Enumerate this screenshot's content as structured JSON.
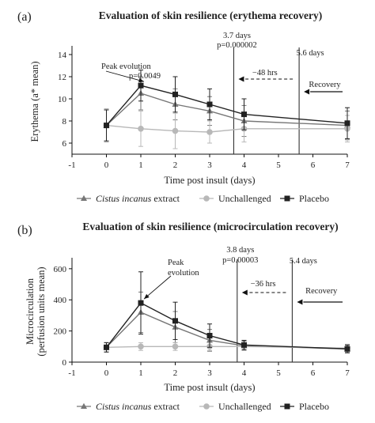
{
  "chart_data": [
    {
      "type": "line",
      "panel_label": "(a)",
      "title": "Evaluation of skin resilience (erythema recovery)",
      "xlabel": "Time post insult (days)",
      "ylabel": "Erythema (a* mean)",
      "xlim": [
        -1,
        7
      ],
      "ylim": [
        5,
        14.5
      ],
      "xticks": [
        -1,
        0,
        1,
        2,
        3,
        4,
        5,
        6,
        7
      ],
      "yticks": [
        6,
        8,
        10,
        12,
        14
      ],
      "x": [
        0,
        1,
        2,
        3,
        4,
        7
      ],
      "series": [
        {
          "name": "Cistus incanus extract",
          "color": "#777777",
          "marker": "triangle",
          "values": [
            7.6,
            10.5,
            9.5,
            8.9,
            8.0,
            7.6
          ],
          "error": [
            1.5,
            1.5,
            1.4,
            1.3,
            1.4,
            1.3
          ]
        },
        {
          "name": "Unchallenged",
          "color": "#b8b8b8",
          "marker": "circle",
          "values": [
            7.6,
            7.3,
            7.1,
            7.0,
            7.3,
            7.3
          ],
          "error": [
            1.5,
            1.6,
            1.6,
            1.0,
            1.2,
            1.2
          ]
        },
        {
          "name": "Placebo",
          "color": "#222222",
          "marker": "square",
          "values": [
            7.6,
            11.2,
            10.4,
            9.5,
            8.6,
            7.8
          ],
          "error": [
            1.4,
            1.4,
            1.6,
            1.4,
            1.4,
            1.4
          ]
        }
      ],
      "vlines": [
        3.7,
        5.6
      ],
      "annotations": {
        "peak_line1": "Peak evolution",
        "peak_line2": "p=0.0049",
        "v1_line1": "3.7 days",
        "v1_line2": "p=0.000002",
        "v2_line1": "5.6 days",
        "shift": "−48 hrs",
        "recovery": "Recovery"
      },
      "legend": {
        "cistus_italic": "Cistus incanus",
        "cistus_rest": " extract",
        "unchallenged": "Unchallenged",
        "placebo": "Placebo"
      },
      "grid": false,
      "legend_position": "bottom"
    },
    {
      "type": "line",
      "panel_label": "(b)",
      "title": "Evaluation of skin resilience (microcirculation recovery)",
      "xlabel": "Time post insult (days)",
      "ylabel_line1": "Microcirculation",
      "ylabel_line2": "(perfusion units mean)",
      "xlim": [
        -1,
        7
      ],
      "ylim": [
        0,
        650
      ],
      "xticks": [
        -1,
        0,
        1,
        2,
        3,
        4,
        5,
        6,
        7
      ],
      "yticks": [
        0,
        200,
        400,
        600
      ],
      "x": [
        0,
        1,
        2,
        3,
        4,
        7
      ],
      "series": [
        {
          "name": "Cistus incanus extract",
          "color": "#777777",
          "marker": "triangle",
          "values": [
            95,
            320,
            225,
            140,
            105,
            85
          ],
          "error": [
            30,
            130,
            100,
            70,
            30,
            25
          ]
        },
        {
          "name": "Unchallenged",
          "color": "#b8b8b8",
          "marker": "circle",
          "values": [
            95,
            100,
            100,
            100,
            100,
            90
          ],
          "error": [
            30,
            25,
            25,
            25,
            25,
            25
          ]
        },
        {
          "name": "Placebo",
          "color": "#222222",
          "marker": "square",
          "values": [
            95,
            380,
            265,
            170,
            110,
            85
          ],
          "error": [
            30,
            200,
            120,
            75,
            30,
            25
          ]
        }
      ],
      "vlines": [
        3.8,
        5.4
      ],
      "annotations": {
        "peak_line1": "Peak",
        "peak_line2": "evolution",
        "v1_line1": "3.8 days",
        "v1_line2": "p=0.00003",
        "v2_line1": "5.4 days",
        "shift": "−36 hrs",
        "recovery": "Recovery"
      },
      "legend": {
        "cistus_italic": "Cistus incanus",
        "cistus_rest": " extract",
        "unchallenged": "Unchallenged",
        "placebo": "Placebo"
      },
      "grid": false,
      "legend_position": "bottom"
    }
  ]
}
